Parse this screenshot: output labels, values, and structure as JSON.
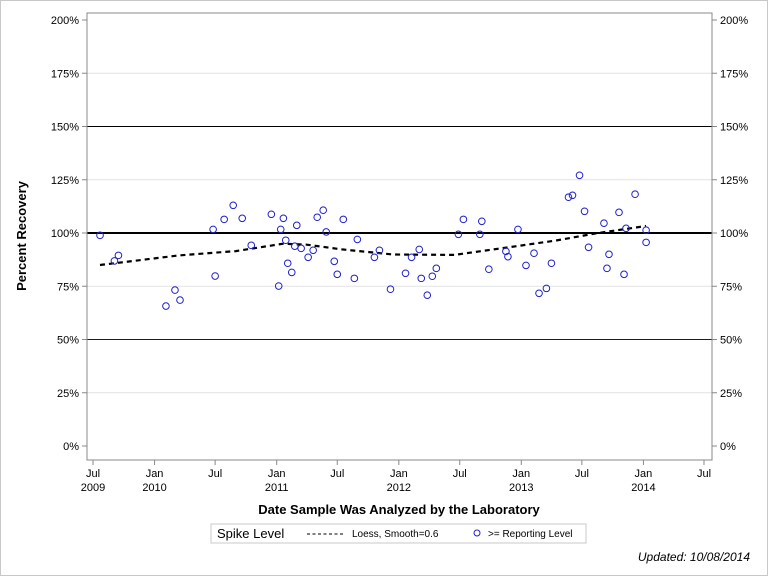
{
  "chart_data": {
    "type": "scatter",
    "xlabel": "Date Sample Was Analyzed by the Laboratory",
    "ylabel": "Percent Recovery",
    "ylim": [
      0,
      200
    ],
    "xlim": [
      "2009-07-01",
      "2014-07-01"
    ],
    "y_ticks": [
      "0%",
      "25%",
      "50%",
      "75%",
      "100%",
      "125%",
      "150%",
      "175%",
      "200%"
    ],
    "x_ticks": [
      {
        "date": "2009-07-01",
        "label": "Jul",
        "year": "2009"
      },
      {
        "date": "2010-01-01",
        "label": "Jan",
        "year": "2010"
      },
      {
        "date": "2010-07-01",
        "label": "Jul",
        "year": ""
      },
      {
        "date": "2011-01-01",
        "label": "Jan",
        "year": "2011"
      },
      {
        "date": "2011-07-01",
        "label": "Jul",
        "year": ""
      },
      {
        "date": "2012-01-01",
        "label": "Jan",
        "year": "2012"
      },
      {
        "date": "2012-07-01",
        "label": "Jul",
        "year": ""
      },
      {
        "date": "2013-01-01",
        "label": "Jan",
        "year": "2013"
      },
      {
        "date": "2013-07-01",
        "label": "Jul",
        "year": ""
      },
      {
        "date": "2014-01-01",
        "label": "Jan",
        "year": "2014"
      },
      {
        "date": "2014-07-01",
        "label": "Jul",
        "year": ""
      }
    ],
    "grid": true,
    "reference_lines": [
      {
        "y": 100,
        "color": "#000000",
        "style": "solid-thick"
      },
      {
        "y": 150,
        "color": "#000000",
        "style": "solid-thin"
      },
      {
        "y": 50,
        "color": "#0000ff",
        "style": "solid-thin"
      }
    ],
    "series": [
      {
        "name": ">= Reporting Level",
        "type": "scatter",
        "marker": "open-circle",
        "color": "#2020d0",
        "points": [
          [
            "2009-07-22",
            98.9
          ],
          [
            "2009-09-03",
            86.9
          ],
          [
            "2009-09-15",
            89.5
          ],
          [
            "2010-02-04",
            65.7
          ],
          [
            "2010-03-03",
            73.2
          ],
          [
            "2010-03-18",
            68.5
          ],
          [
            "2010-06-25",
            101.7
          ],
          [
            "2010-07-01",
            79.8
          ],
          [
            "2010-07-28",
            106.4
          ],
          [
            "2010-08-24",
            113.0
          ],
          [
            "2010-09-20",
            106.9
          ],
          [
            "2010-10-17",
            94.2
          ],
          [
            "2010-12-16",
            108.8
          ],
          [
            "2011-01-07",
            75.1
          ],
          [
            "2011-01-13",
            101.7
          ],
          [
            "2011-01-21",
            106.9
          ],
          [
            "2011-01-28",
            96.6
          ],
          [
            "2011-02-03",
            85.8
          ],
          [
            "2011-02-15",
            81.5
          ],
          [
            "2011-02-24",
            93.8
          ],
          [
            "2011-03-02",
            103.6
          ],
          [
            "2011-03-15",
            92.8
          ],
          [
            "2011-04-05",
            88.6
          ],
          [
            "2011-04-20",
            91.9
          ],
          [
            "2011-05-02",
            107.4
          ],
          [
            "2011-05-20",
            110.7
          ],
          [
            "2011-05-29",
            100.5
          ],
          [
            "2011-06-22",
            86.7
          ],
          [
            "2011-07-01",
            80.6
          ],
          [
            "2011-07-19",
            106.4
          ],
          [
            "2011-08-21",
            78.7
          ],
          [
            "2011-08-30",
            97.0
          ],
          [
            "2011-10-20",
            88.6
          ],
          [
            "2011-11-04",
            91.9
          ],
          [
            "2011-12-07",
            73.6
          ],
          [
            "2012-01-21",
            81.1
          ],
          [
            "2012-02-08",
            88.6
          ],
          [
            "2012-03-02",
            92.3
          ],
          [
            "2012-03-08",
            78.7
          ],
          [
            "2012-03-26",
            70.8
          ],
          [
            "2012-04-10",
            79.7
          ],
          [
            "2012-04-22",
            83.4
          ],
          [
            "2012-06-27",
            99.4
          ],
          [
            "2012-07-12",
            106.4
          ],
          [
            "2012-08-30",
            99.4
          ],
          [
            "2012-09-05",
            105.5
          ],
          [
            "2012-09-26",
            83.0
          ],
          [
            "2012-11-16",
            91.4
          ],
          [
            "2012-11-22",
            88.9
          ],
          [
            "2012-12-22",
            101.7
          ],
          [
            "2013-01-15",
            84.8
          ],
          [
            "2013-02-08",
            90.5
          ],
          [
            "2013-02-23",
            71.7
          ],
          [
            "2013-03-17",
            74.0
          ],
          [
            "2013-04-01",
            85.8
          ],
          [
            "2013-05-22",
            116.8
          ],
          [
            "2013-06-03",
            117.7
          ],
          [
            "2013-06-24",
            127.1
          ],
          [
            "2013-07-09",
            110.2
          ],
          [
            "2013-07-21",
            93.3
          ],
          [
            "2013-09-05",
            104.6
          ],
          [
            "2013-09-14",
            83.4
          ],
          [
            "2013-09-20",
            90.0
          ],
          [
            "2013-10-20",
            109.7
          ],
          [
            "2013-11-04",
            80.6
          ],
          [
            "2013-11-10",
            102.2
          ],
          [
            "2013-12-07",
            118.2
          ],
          [
            "2014-01-09",
            101.3
          ],
          [
            "2014-01-09",
            95.6
          ]
        ]
      },
      {
        "name": "Loess, Smooth=0.6",
        "type": "line",
        "style": "dashed",
        "color": "#000000",
        "points": [
          [
            "2009-07-22",
            85.0
          ],
          [
            "2010-03-15",
            89.5
          ],
          [
            "2010-09-01",
            91.5
          ],
          [
            "2011-01-20",
            95.0
          ],
          [
            "2011-04-01",
            94.5
          ],
          [
            "2011-07-15",
            92.3
          ],
          [
            "2011-12-15",
            89.9
          ],
          [
            "2012-06-15",
            89.7
          ],
          [
            "2012-11-20",
            93.2
          ],
          [
            "2013-04-15",
            96.5
          ],
          [
            "2013-08-15",
            99.9
          ],
          [
            "2014-01-09",
            103.3
          ]
        ]
      }
    ]
  },
  "legend": {
    "title": "Spike Level",
    "loess_label": "Loess, Smooth=0.6",
    "points_label": ">= Reporting Level"
  },
  "footnote": "Updated: 10/08/2014"
}
